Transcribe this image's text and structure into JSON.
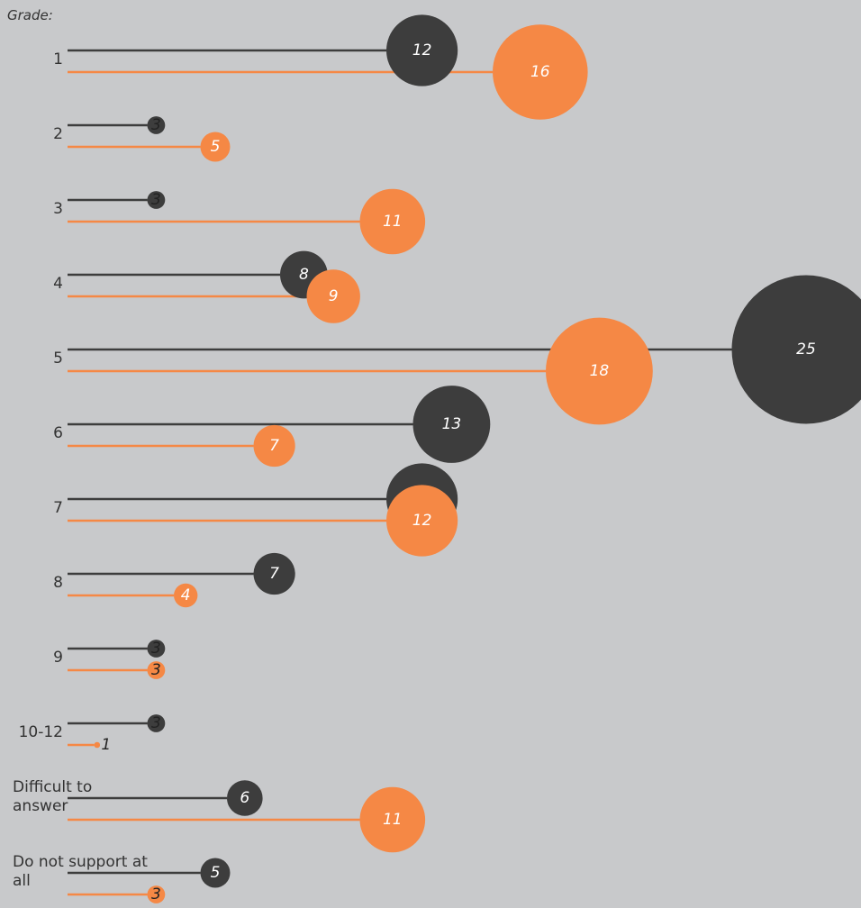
{
  "chart_data": {
    "type": "lollipop-bubble",
    "title": "Grade:",
    "categories": [
      "1",
      "2",
      "3",
      "4",
      "5",
      "6",
      "7",
      "8",
      "9",
      "10-12",
      "Difficult to answer",
      "Do not support at all"
    ],
    "series": [
      {
        "color": "#3d3d3d",
        "values": [
          12,
          3,
          3,
          8,
          25,
          13,
          12,
          7,
          3,
          3,
          6,
          5
        ]
      },
      {
        "color": "#f58845",
        "values": [
          16,
          5,
          11,
          9,
          18,
          7,
          12,
          4,
          3,
          1,
          11,
          3
        ]
      }
    ]
  }
}
